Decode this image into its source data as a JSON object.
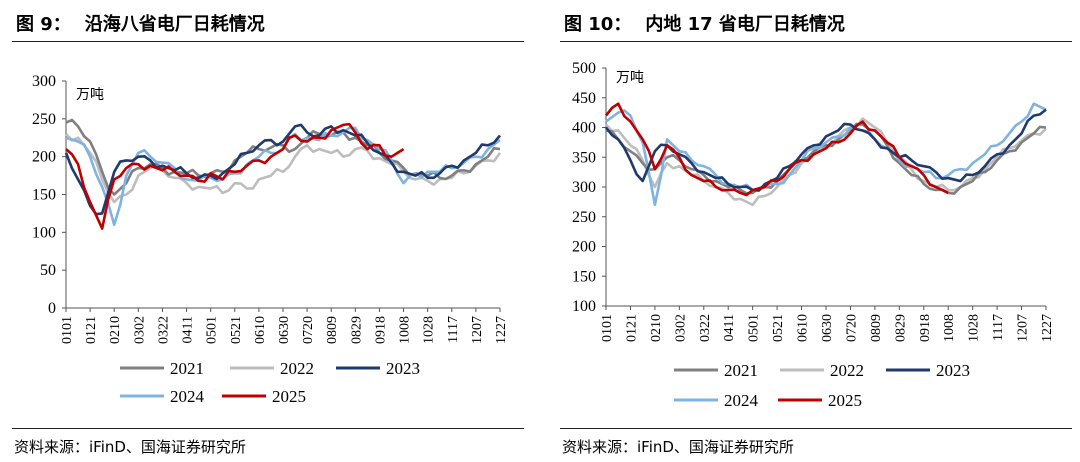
{
  "panels": [
    {
      "fig_label": "图 9：",
      "fig_title": "沿海八省电厂日耗情况",
      "source": "资料来源：iFinD、国海证券研究所"
    },
    {
      "fig_label": "图 10：",
      "fig_title": "内地 17 省电厂日耗情况",
      "source": "资料来源：iFinD、国海证券研究所"
    }
  ],
  "chart_data": [
    {
      "type": "line",
      "title": "沿海八省电厂日耗情况",
      "ylabel": "万吨",
      "ylim": [
        0,
        300
      ],
      "yticks": [
        0,
        50,
        100,
        150,
        200,
        250,
        300
      ],
      "x_tick_labels": [
        "0101",
        "0121",
        "0210",
        "0302",
        "0322",
        "0411",
        "0501",
        "0521",
        "0610",
        "0630",
        "0720",
        "0809",
        "0829",
        "0918",
        "1008",
        "1028",
        "1117",
        "1207",
        "1227"
      ],
      "series": [
        {
          "name": "2021",
          "color": "#808080",
          "x": [
            0,
            0.5,
            1,
            1.5,
            2,
            2.5,
            3,
            3.5,
            4,
            4.5,
            5,
            5.5,
            6,
            6.5,
            7,
            7.5,
            8,
            8.5,
            9,
            9.5,
            10,
            10.5,
            11,
            11.5,
            12,
            12.5,
            13,
            13.5,
            14,
            14.5,
            15,
            15.5,
            16,
            16.5,
            17,
            17.5,
            18
          ],
          "values": [
            245,
            240,
            220,
            180,
            150,
            165,
            185,
            190,
            185,
            180,
            178,
            175,
            178,
            180,
            195,
            205,
            210,
            212,
            215,
            210,
            225,
            230,
            228,
            232,
            225,
            215,
            205,
            195,
            185,
            178,
            175,
            172,
            175,
            182,
            190,
            200,
            210
          ]
        },
        {
          "name": "2022",
          "color": "#bdbdbd",
          "x": [
            0,
            0.5,
            1,
            1.5,
            2,
            2.5,
            3,
            3.5,
            4,
            4.5,
            5,
            5.5,
            6,
            6.5,
            7,
            7.5,
            8,
            8.5,
            9,
            9.5,
            10,
            10.5,
            11,
            11.5,
            12,
            12.5,
            13,
            13.5,
            14,
            14.5,
            15,
            15.5,
            16,
            16.5,
            17,
            17.5,
            18
          ],
          "values": [
            230,
            225,
            205,
            170,
            140,
            150,
            175,
            185,
            182,
            172,
            165,
            160,
            158,
            152,
            165,
            158,
            170,
            175,
            180,
            200,
            215,
            210,
            205,
            200,
            210,
            208,
            198,
            190,
            180,
            170,
            168,
            170,
            172,
            178,
            188,
            195,
            205
          ]
        },
        {
          "name": "2023",
          "color": "#1f3a6e",
          "x": [
            0,
            0.5,
            1,
            1.5,
            2,
            2.5,
            3,
            3.5,
            4,
            4.5,
            5,
            5.5,
            6,
            6.5,
            7,
            7.5,
            8,
            8.5,
            9,
            9.5,
            10,
            10.5,
            11,
            11.5,
            12,
            12.5,
            13,
            13.5,
            14,
            14.5,
            15,
            15.5,
            16,
            16.5,
            17,
            17.5,
            18
          ],
          "values": [
            205,
            170,
            135,
            125,
            180,
            195,
            200,
            195,
            188,
            182,
            178,
            172,
            175,
            178,
            190,
            205,
            215,
            222,
            220,
            240,
            232,
            228,
            240,
            235,
            228,
            218,
            205,
            192,
            180,
            175,
            172,
            178,
            188,
            195,
            205,
            215,
            228
          ]
        },
        {
          "name": "2024",
          "color": "#7fb3e0",
          "x": [
            0,
            0.5,
            1,
            1.5,
            2,
            2.5,
            3,
            3.5,
            4,
            4.5,
            5,
            5.5,
            6,
            6.5,
            7,
            7.5,
            8,
            8.5,
            9,
            9.5,
            10,
            10.5,
            11,
            11.5,
            12,
            12.5,
            13,
            13.5,
            14,
            14.5,
            15,
            15.5,
            16,
            16.5,
            17,
            17.5,
            18
          ],
          "values": [
            225,
            220,
            200,
            160,
            110,
            175,
            205,
            200,
            192,
            185,
            170,
            168,
            172,
            170,
            178,
            190,
            200,
            205,
            210,
            230,
            225,
            222,
            228,
            232,
            238,
            222,
            210,
            195,
            165,
            178,
            180,
            180,
            185,
            192,
            200,
            210,
            222
          ]
        },
        {
          "name": "2025",
          "color": "#c00000",
          "x": [
            0,
            0.5,
            1,
            1.5,
            2,
            2.5,
            3,
            3.5,
            4,
            4.5,
            5,
            5.5,
            6,
            6.5,
            7,
            7.5,
            8,
            8.5,
            9,
            9.5,
            10,
            10.5,
            11,
            11.5,
            12,
            12.5,
            13,
            13.5,
            14
          ],
          "values": [
            210,
            190,
            140,
            105,
            170,
            185,
            190,
            188,
            182,
            180,
            175,
            168,
            178,
            170,
            180,
            188,
            195,
            200,
            210,
            228,
            220,
            225,
            235,
            242,
            232,
            210,
            215,
            200,
            210
          ]
        }
      ]
    },
    {
      "type": "line",
      "title": "内地 17 省电厂日耗情况",
      "ylabel": "万吨",
      "ylim": [
        100,
        500
      ],
      "yticks": [
        100,
        150,
        200,
        250,
        300,
        350,
        400,
        450,
        500
      ],
      "x_tick_labels": [
        "0101",
        "0121",
        "0210",
        "0302",
        "0322",
        "0411",
        "0501",
        "0521",
        "0610",
        "0630",
        "0720",
        "0809",
        "0829",
        "0918",
        "1008",
        "1028",
        "1117",
        "1207",
        "1227"
      ],
      "series": [
        {
          "name": "2021",
          "color": "#808080",
          "x": [
            0,
            0.5,
            1,
            1.5,
            2,
            2.5,
            3,
            3.5,
            4,
            4.5,
            5,
            5.5,
            6,
            6.5,
            7,
            7.5,
            8,
            8.5,
            9,
            9.5,
            10,
            10.5,
            11,
            11.5,
            12,
            12.5,
            13,
            13.5,
            14,
            14.5,
            15,
            15.5,
            16,
            16.5,
            17,
            17.5,
            18
          ],
          "values": [
            395,
            380,
            360,
            340,
            330,
            350,
            345,
            330,
            320,
            310,
            300,
            295,
            290,
            300,
            310,
            330,
            345,
            360,
            370,
            380,
            395,
            405,
            395,
            370,
            340,
            320,
            305,
            295,
            290,
            300,
            310,
            325,
            345,
            360,
            375,
            390,
            400
          ]
        },
        {
          "name": "2022",
          "color": "#bdbdbd",
          "x": [
            0,
            0.5,
            1,
            1.5,
            2,
            2.5,
            3,
            3.5,
            4,
            4.5,
            5,
            5.5,
            6,
            6.5,
            7,
            7.5,
            8,
            8.5,
            9,
            9.5,
            10,
            10.5,
            11,
            11.5,
            12,
            12.5,
            13,
            13.5,
            14,
            14.5,
            15,
            15.5,
            16,
            16.5,
            17,
            17.5,
            18
          ],
          "values": [
            405,
            395,
            370,
            345,
            300,
            340,
            335,
            320,
            310,
            300,
            290,
            280,
            270,
            285,
            300,
            320,
            340,
            355,
            365,
            385,
            400,
            415,
            400,
            375,
            350,
            330,
            310,
            300,
            295,
            300,
            315,
            330,
            350,
            365,
            378,
            390,
            398
          ]
        },
        {
          "name": "2023",
          "color": "#1f3a6e",
          "x": [
            0,
            0.5,
            1,
            1.5,
            2,
            2.5,
            3,
            3.5,
            4,
            4.5,
            5,
            5.5,
            6,
            6.5,
            7,
            7.5,
            8,
            8.5,
            9,
            9.5,
            10,
            10.5,
            11,
            11.5,
            12,
            12.5,
            13,
            13.5,
            14,
            14.5,
            15,
            15.5,
            16,
            16.5,
            17,
            17.5,
            18
          ],
          "values": [
            400,
            380,
            345,
            310,
            360,
            370,
            355,
            340,
            325,
            315,
            305,
            300,
            295,
            305,
            315,
            335,
            355,
            370,
            385,
            395,
            405,
            395,
            380,
            365,
            350,
            345,
            335,
            325,
            315,
            310,
            320,
            335,
            355,
            370,
            390,
            420,
            430
          ]
        },
        {
          "name": "2024",
          "color": "#7fb3e0",
          "x": [
            0,
            0.5,
            1,
            1.5,
            2,
            2.5,
            3,
            3.5,
            4,
            4.5,
            5,
            5.5,
            6,
            6.5,
            7,
            7.5,
            8,
            8.5,
            9,
            9.5,
            10,
            10.5,
            11,
            11.5,
            12,
            12.5,
            13,
            13.5,
            14,
            14.5,
            15,
            15.5,
            16,
            16.5,
            17,
            17.5,
            18
          ],
          "values": [
            410,
            425,
            420,
            375,
            270,
            380,
            360,
            345,
            335,
            320,
            305,
            300,
            295,
            300,
            305,
            320,
            345,
            365,
            375,
            385,
            400,
            395,
            380,
            365,
            345,
            335,
            325,
            315,
            320,
            330,
            340,
            355,
            370,
            390,
            410,
            440,
            430
          ]
        },
        {
          "name": "2025",
          "color": "#c00000",
          "x": [
            0,
            0.5,
            1,
            1.5,
            2,
            2.5,
            3,
            3.5,
            4,
            4.5,
            5,
            5.5,
            6,
            6.5,
            7,
            7.5,
            8,
            8.5,
            9,
            9.5,
            10,
            10.5,
            11,
            11.5,
            12,
            12.5,
            13,
            13.5,
            14
          ],
          "values": [
            420,
            440,
            410,
            380,
            330,
            370,
            350,
            320,
            310,
            300,
            295,
            290,
            295,
            300,
            310,
            330,
            345,
            355,
            365,
            375,
            390,
            410,
            395,
            375,
            350,
            335,
            320,
            300,
            290
          ]
        }
      ]
    }
  ],
  "legend": {
    "order_row1": [
      "2021",
      "2022",
      "2023"
    ],
    "order_row2": [
      "2024",
      "2025"
    ]
  }
}
